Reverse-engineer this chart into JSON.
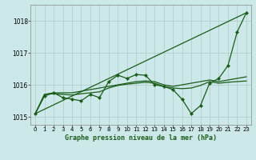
{
  "background_color": "#cce8e8",
  "grid_color": "#b0c8c8",
  "plot_bg": "#cce8e8",
  "line_color": "#1a5c1a",
  "title": "Graphe pression niveau de la mer (hPa)",
  "xlim": [
    -0.5,
    23.5
  ],
  "ylim": [
    1014.75,
    1018.5
  ],
  "yticks": [
    1015,
    1016,
    1017,
    1018
  ],
  "xticks": [
    0,
    1,
    2,
    3,
    4,
    5,
    6,
    7,
    8,
    9,
    10,
    11,
    12,
    13,
    14,
    15,
    16,
    17,
    18,
    19,
    20,
    21,
    22,
    23
  ],
  "series": [
    {
      "x": [
        0,
        23
      ],
      "y": [
        1015.1,
        1018.25
      ],
      "marker": false,
      "linewidth": 0.9
    },
    {
      "x": [
        0,
        1,
        2,
        3,
        4,
        5,
        6,
        7,
        8,
        9,
        10,
        11,
        12,
        13,
        14,
        15,
        16,
        17,
        18,
        19,
        20,
        21,
        22,
        23
      ],
      "y": [
        1015.1,
        1015.7,
        1015.75,
        1015.75,
        1015.75,
        1015.8,
        1015.85,
        1015.9,
        1015.95,
        1016.0,
        1016.05,
        1016.1,
        1016.12,
        1016.1,
        1016.0,
        1015.95,
        1016.0,
        1016.05,
        1016.1,
        1016.15,
        1016.1,
        1016.15,
        1016.2,
        1016.25
      ],
      "marker": false,
      "linewidth": 0.9
    },
    {
      "x": [
        0,
        1,
        2,
        3,
        4,
        5,
        6,
        7,
        8,
        9,
        10,
        11,
        12,
        13,
        14,
        15,
        16,
        17,
        18,
        19,
        20,
        21,
        22,
        23
      ],
      "y": [
        1015.1,
        1015.7,
        1015.72,
        1015.7,
        1015.68,
        1015.72,
        1015.75,
        1015.78,
        1015.9,
        1015.98,
        1016.02,
        1016.05,
        1016.08,
        1016.05,
        1015.95,
        1015.9,
        1015.88,
        1015.9,
        1015.98,
        1016.1,
        1016.05,
        1016.08,
        1016.1,
        1016.12
      ],
      "marker": false,
      "linewidth": 0.9
    },
    {
      "x": [
        0,
        1,
        2,
        3,
        4,
        5,
        6,
        7,
        8,
        9,
        10,
        11,
        12,
        13,
        14,
        15,
        16,
        17,
        18,
        19,
        20,
        21,
        22,
        23
      ],
      "y": [
        1015.1,
        1015.65,
        1015.75,
        1015.6,
        1015.55,
        1015.5,
        1015.7,
        1015.6,
        1016.1,
        1016.3,
        1016.2,
        1016.32,
        1016.3,
        1016.0,
        1015.95,
        1015.85,
        1015.55,
        1015.1,
        1015.35,
        1016.05,
        1016.2,
        1016.6,
        1017.65,
        1018.25
      ],
      "marker": true,
      "linewidth": 0.9
    }
  ]
}
